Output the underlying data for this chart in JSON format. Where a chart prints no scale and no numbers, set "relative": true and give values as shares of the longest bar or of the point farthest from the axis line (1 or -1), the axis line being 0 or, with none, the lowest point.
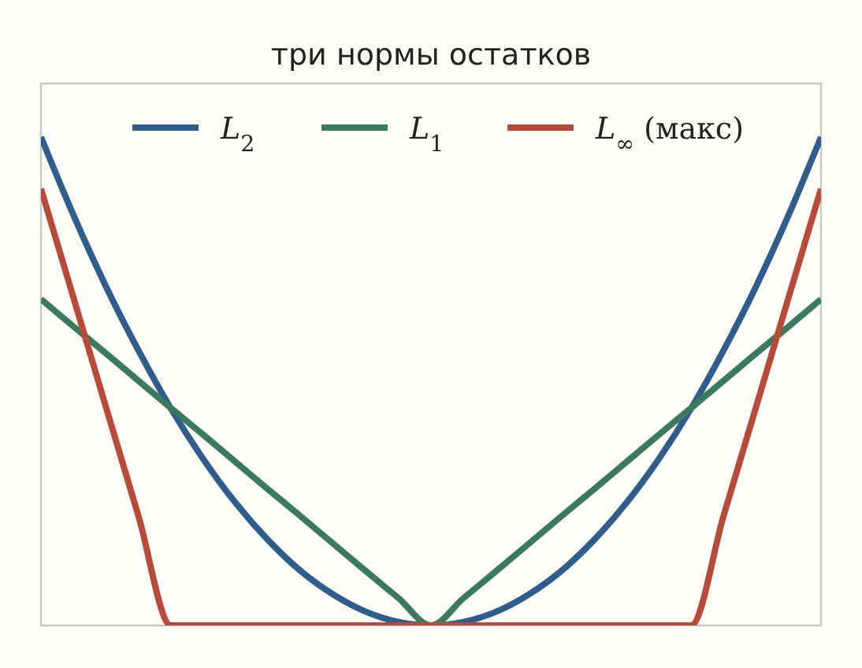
{
  "chart_data": {
    "type": "line",
    "title": "три нормы остатков",
    "relative": true,
    "legend": "top",
    "grid": false,
    "line_style": "solid",
    "categories": [
      null,
      null,
      null,
      null,
      null,
      null,
      null,
      null,
      null,
      null,
      null,
      null,
      null,
      null,
      null,
      null,
      null,
      null,
      null,
      null,
      null,
      null,
      null,
      null,
      null
    ],
    "series": [
      {
        "name": "L$_{2}$",
        "color": "#2f5d8c",
        "values": [
          1,
          0.84,
          0.694,
          0.563,
          0.444,
          0.34,
          0.25,
          0.174,
          0.111,
          0.063,
          0.028,
          0.007,
          0,
          0.007,
          0.028,
          0.063,
          0.111,
          0.174,
          0.25,
          0.34,
          0.444,
          0.563,
          0.694,
          0.84,
          1
        ]
      },
      {
        "name": "L$_{1}$",
        "color": "#3a7a5e",
        "values": [
          0.668,
          0.612,
          0.557,
          0.501,
          0.445,
          0.39,
          0.334,
          0.278,
          0.223,
          0.167,
          0.111,
          0.056,
          0,
          0.056,
          0.111,
          0.167,
          0.223,
          0.278,
          0.334,
          0.39,
          0.445,
          0.501,
          0.557,
          0.612,
          0.668
        ]
      },
      {
        "name": "L$_{∞}$ (макс)",
        "color": "#b84a3c",
        "values": [
          0.894,
          0.671,
          0.447,
          0.224,
          0,
          0,
          0,
          0,
          0,
          0,
          0,
          0,
          0,
          0,
          0,
          0,
          0,
          0,
          0,
          0,
          0,
          0.224,
          0.447,
          0.671,
          0.894
        ]
      }
    ]
  }
}
